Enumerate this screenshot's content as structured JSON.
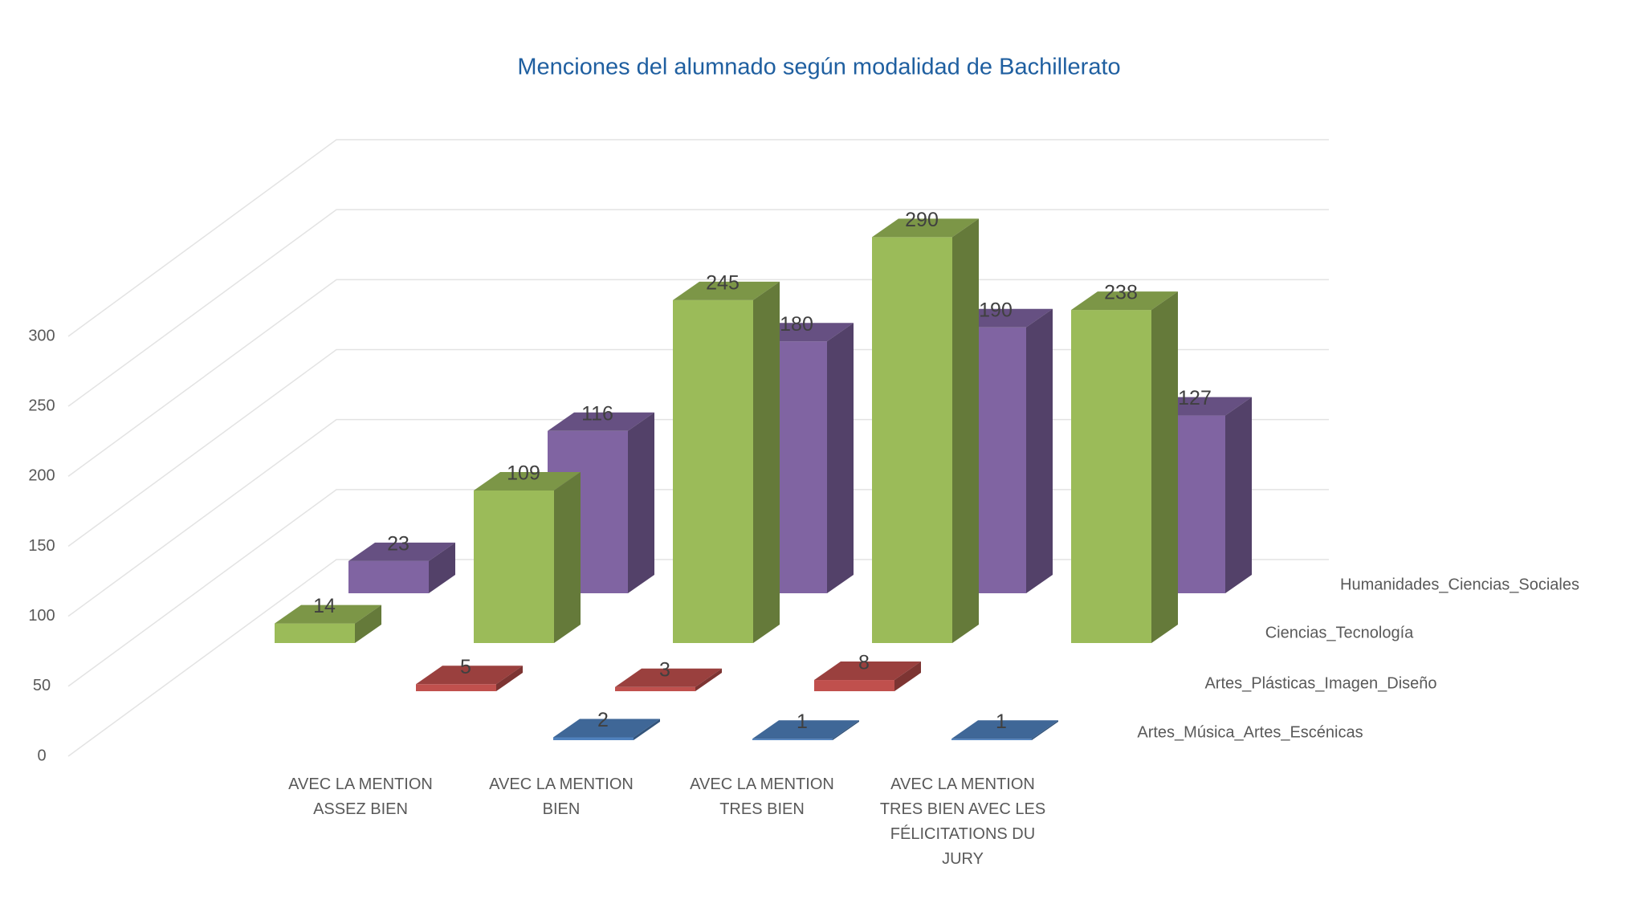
{
  "chart_data": {
    "type": "bar3d",
    "title": "Menciones del alumnado según modalidad de Bachillerato",
    "categories": [
      "AVEC LA MENTION ASSEZ BIEN",
      "AVEC LA MENTION BIEN",
      "AVEC LA MENTION TRES BIEN",
      "AVEC LA MENTION TRES BIEN AVEC LES FÉLICITATIONS DU JURY",
      null
    ],
    "series": [
      {
        "name": "Artes_Música_Artes_Escénicas",
        "color": "#4f81bd",
        "values": [
          null,
          2,
          1,
          1,
          null
        ]
      },
      {
        "name": "Artes_Plásticas_Imagen_Diseño",
        "color": "#c0504d",
        "values": [
          null,
          5,
          3,
          8,
          null
        ]
      },
      {
        "name": "Ciencias_Tecnología",
        "color": "#9bbb59",
        "values": [
          14,
          109,
          245,
          290,
          238
        ]
      },
      {
        "name": "Humanidades_Ciencias_Sociales",
        "color": "#8064a2",
        "values": [
          23,
          116,
          180,
          190,
          127
        ]
      }
    ],
    "ylim": [
      0,
      300
    ],
    "yticks": [
      0,
      50,
      100,
      150,
      200,
      250,
      300
    ],
    "grid": true
  }
}
